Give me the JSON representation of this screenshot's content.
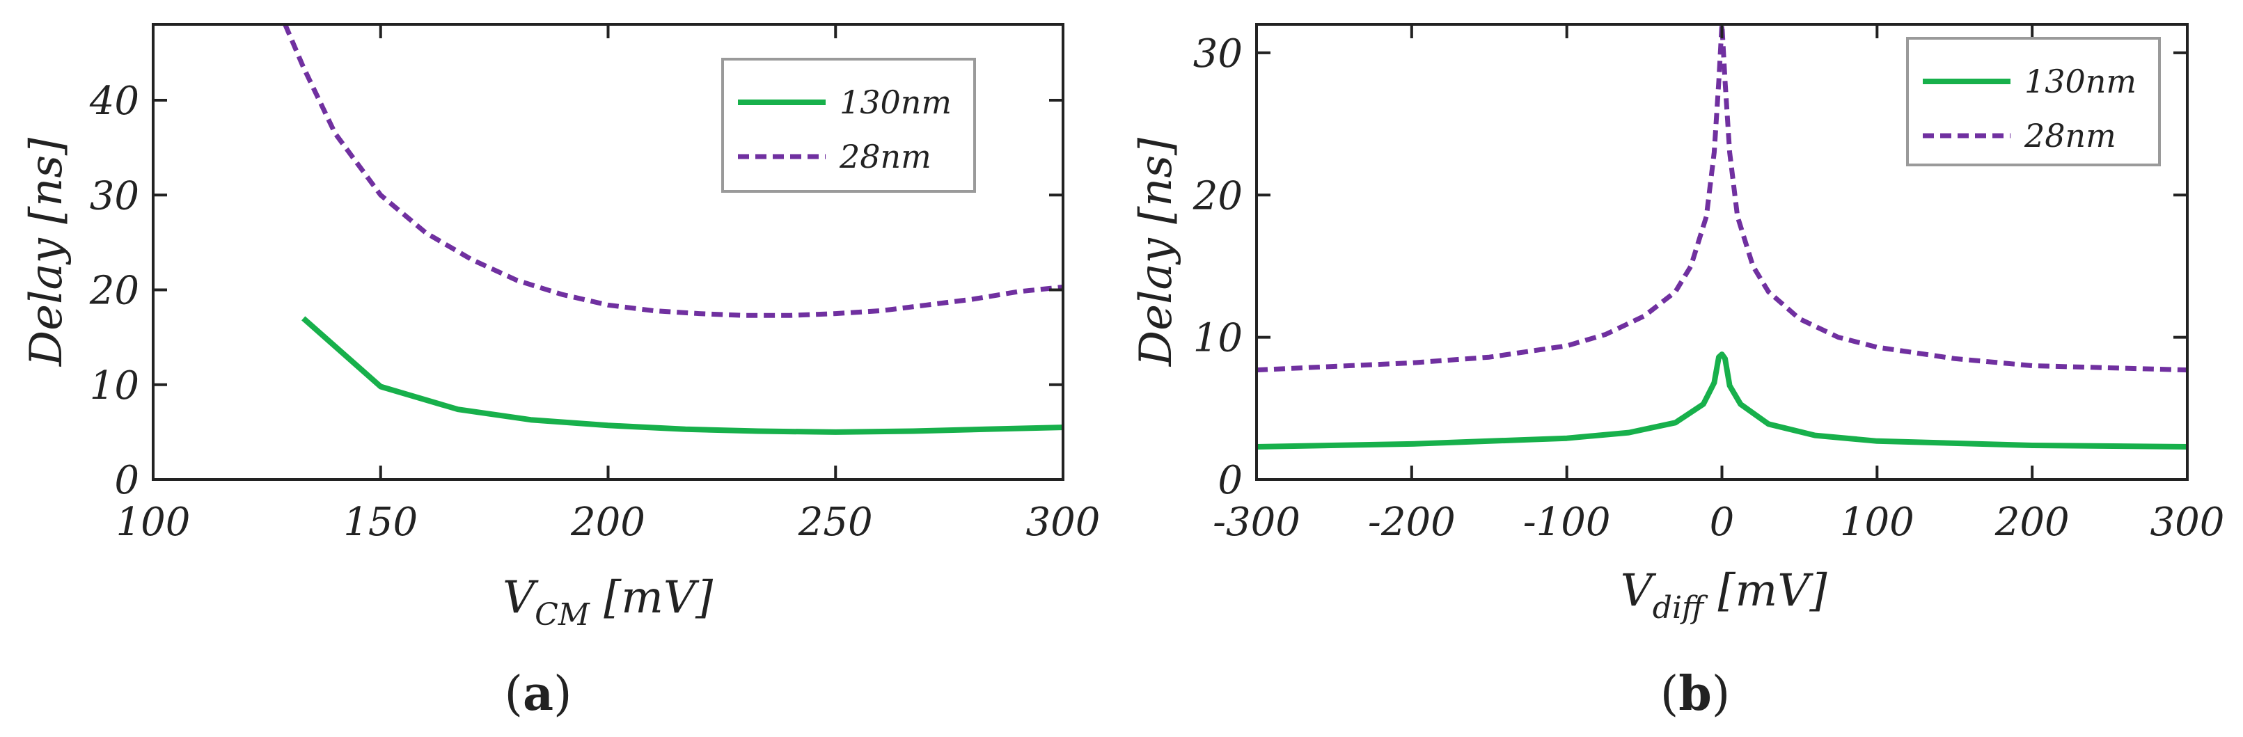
{
  "chart_data": [
    {
      "type": "line",
      "panel_label": "a",
      "caption_open": "(",
      "caption_close": ")",
      "xlabel_main": "V",
      "xlabel_sub": "CM",
      "xlabel_unit": " [mV]",
      "ylabel": "Delay [ns]",
      "xlim": [
        100,
        300
      ],
      "ylim": [
        0,
        48
      ],
      "xticks": [
        100,
        150,
        200,
        250,
        300
      ],
      "xtick_labels": [
        "100",
        "150",
        "200",
        "250",
        "300"
      ],
      "yticks": [
        0,
        10,
        20,
        30,
        40
      ],
      "ytick_labels": [
        "0",
        "10",
        "20",
        "30",
        "40"
      ],
      "grid": false,
      "legend_position": "top-right",
      "series": [
        {
          "name": "130nm",
          "style": "solid",
          "color": "#17b04b",
          "x": [
            133,
            150,
            167,
            183,
            200,
            217,
            233,
            250,
            267,
            283,
            300
          ],
          "y": [
            17.0,
            9.8,
            7.4,
            6.3,
            5.7,
            5.3,
            5.1,
            5.0,
            5.1,
            5.3,
            5.5
          ]
        },
        {
          "name": "28nm",
          "style": "dashed",
          "color": "#7030a0",
          "x": [
            129,
            133,
            140,
            150,
            160,
            170,
            180,
            190,
            200,
            210,
            220,
            230,
            240,
            250,
            260,
            270,
            280,
            290,
            300
          ],
          "y": [
            48,
            43.5,
            36.5,
            30.0,
            26.0,
            23.2,
            21.0,
            19.5,
            18.4,
            17.8,
            17.5,
            17.3,
            17.3,
            17.5,
            17.8,
            18.4,
            19.0,
            19.8,
            20.3
          ]
        }
      ]
    },
    {
      "type": "line",
      "panel_label": "b",
      "caption_open": "(",
      "caption_close": ")",
      "xlabel_main": "V",
      "xlabel_sub": "diff",
      "xlabel_unit": " [mV]",
      "ylabel": "Delay [ns]",
      "xlim": [
        -300,
        300
      ],
      "ylim": [
        0,
        32
      ],
      "xticks": [
        -300,
        -200,
        -100,
        0,
        100,
        200,
        300
      ],
      "xtick_labels": [
        "-300",
        "-200",
        "-100",
        "0",
        "100",
        "200",
        "300"
      ],
      "yticks": [
        0,
        10,
        20,
        30
      ],
      "ytick_labels": [
        "0",
        "10",
        "20",
        "30"
      ],
      "grid": false,
      "legend_position": "top-right",
      "series": [
        {
          "name": "130nm",
          "style": "solid",
          "color": "#17b04b",
          "x": [
            -300,
            -200,
            -100,
            -60,
            -30,
            -12,
            -5,
            -2,
            0,
            2,
            5,
            12,
            30,
            60,
            100,
            200,
            300
          ],
          "y": [
            2.3,
            2.5,
            2.9,
            3.3,
            4.0,
            5.3,
            6.8,
            8.6,
            8.8,
            8.5,
            6.6,
            5.3,
            3.9,
            3.1,
            2.7,
            2.4,
            2.3
          ]
        },
        {
          "name": "28nm",
          "style": "dashed",
          "color": "#7030a0",
          "x": [
            -300,
            -200,
            -150,
            -100,
            -75,
            -50,
            -30,
            -20,
            -10,
            -5,
            -2,
            0,
            2,
            5,
            10,
            20,
            30,
            50,
            75,
            100,
            150,
            200,
            300
          ],
          "y": [
            7.7,
            8.2,
            8.6,
            9.4,
            10.2,
            11.5,
            13.2,
            15.0,
            18.5,
            23.0,
            28.0,
            32.0,
            28.0,
            23.0,
            18.5,
            15.0,
            13.2,
            11.3,
            10.0,
            9.3,
            8.5,
            8.0,
            7.7
          ]
        }
      ]
    }
  ]
}
